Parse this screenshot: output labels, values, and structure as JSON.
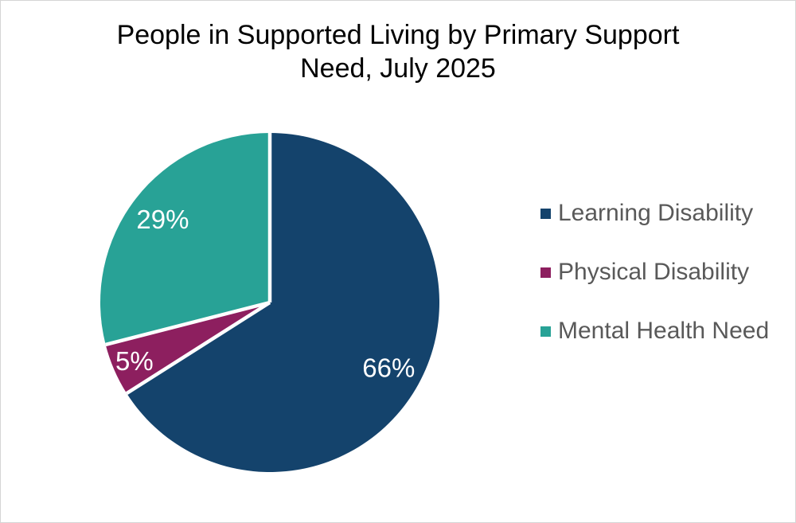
{
  "chart_data": {
    "type": "pie",
    "title": "People in Supported Living by Primary Support Need, July 2025",
    "categories": [
      "Learning Disability",
      "Physical Disability",
      "Mental Health Need"
    ],
    "values": [
      66,
      5,
      29
    ],
    "unit": "%",
    "slices": [
      {
        "label": "Learning Disability",
        "value": 66,
        "display": "66%",
        "color": "#14436C"
      },
      {
        "label": "Physical Disability",
        "value": 5,
        "display": "5%",
        "color": "#8D1F5F"
      },
      {
        "label": "Mental Health Need",
        "value": 29,
        "display": "29%",
        "color": "#28A296"
      }
    ],
    "start_position": "12 o'clock, clockwise",
    "legend_position": "right",
    "data_label_color": "#FFFFFF",
    "legend_text_color": "#595959",
    "title_color": "#000000",
    "divider_color": "#FFFFFF",
    "background_color": "#FFFFFF",
    "frame_border_color": "#D5D5D5"
  }
}
